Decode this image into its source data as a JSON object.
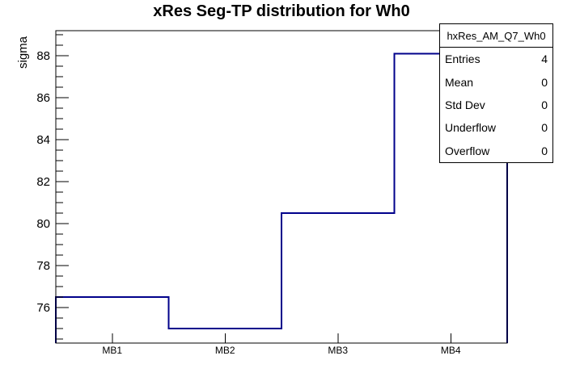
{
  "title": "xRes Seg-TP distribution for Wh0",
  "chart_data": {
    "type": "bar",
    "style": "root-step-histogram",
    "title": "xRes Seg-TP distribution for Wh0",
    "xlabel": "",
    "ylabel": "sigma",
    "categories": [
      "MB1",
      "MB2",
      "MB3",
      "MB4"
    ],
    "values": [
      76.5,
      75.0,
      80.5,
      88.1
    ],
    "ylim": [
      74.3,
      89.2
    ],
    "y_major_ticks": [
      76,
      78,
      80,
      82,
      84,
      86,
      88
    ],
    "y_minor_step": 0.5,
    "grid": false,
    "legend_position": "none",
    "line_color": "#00008b",
    "frame_color": "#000000",
    "background_color": "#ffffff"
  },
  "stats": {
    "title": "hxRes_AM_Q7_Wh0",
    "rows": [
      {
        "label": "Entries",
        "value": "4"
      },
      {
        "label": "Mean",
        "value": "0"
      },
      {
        "label": "Std Dev",
        "value": "0"
      },
      {
        "label": "Underflow",
        "value": "0"
      },
      {
        "label": "Overflow",
        "value": "0"
      }
    ]
  }
}
